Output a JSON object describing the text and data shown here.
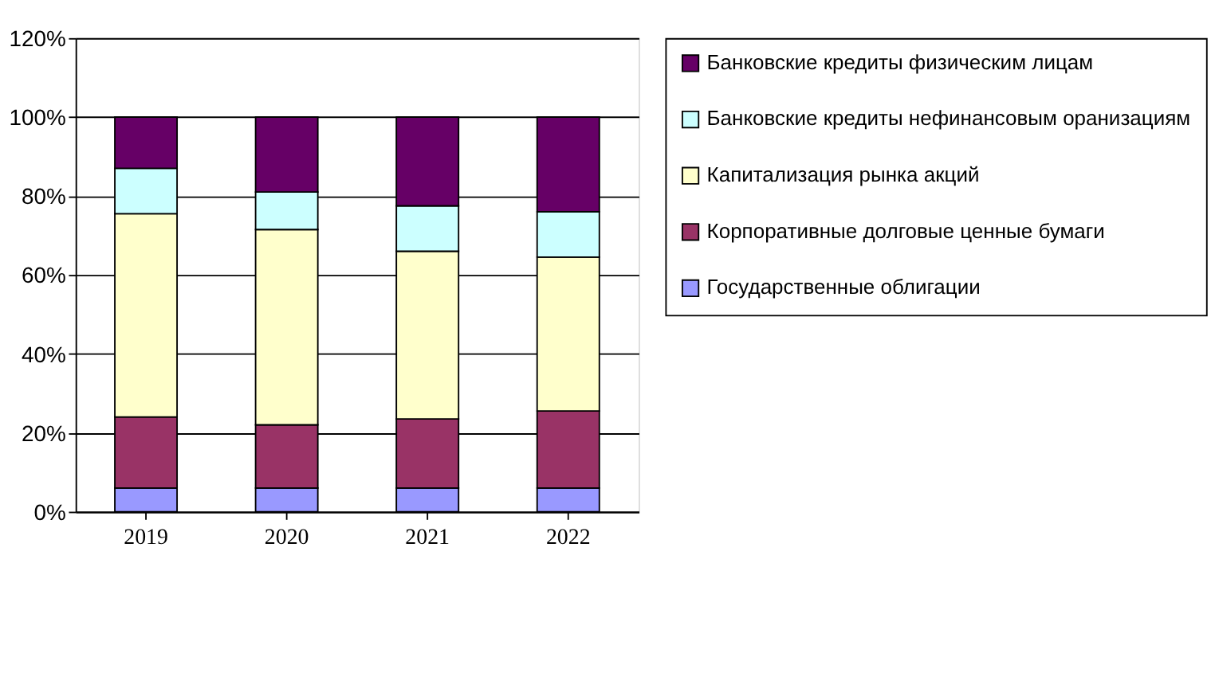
{
  "chart_data": {
    "type": "bar",
    "stacked": true,
    "categories": [
      "2019",
      "2020",
      "2021",
      "2022"
    ],
    "series": [
      {
        "name": "Государственные облигации",
        "color": "#9999ff",
        "values": [
          6,
          6,
          6,
          6
        ]
      },
      {
        "name": "Корпоративные долговые ценные бумаги",
        "color": "#993366",
        "values": [
          18,
          16,
          17.5,
          19.5
        ]
      },
      {
        "name": "Капитализация рынка акций",
        "color": "#ffffcc",
        "values": [
          51.5,
          49.5,
          42.5,
          39
        ]
      },
      {
        "name": "Банковские кредиты нефинансовым оранизациям",
        "color": "#ccffff",
        "values": [
          11.5,
          9.5,
          11.5,
          11.5
        ]
      },
      {
        "name": "Банковские кредиты физическим лицам",
        "color": "#660066",
        "values": [
          13,
          19,
          22.5,
          24
        ]
      }
    ],
    "ylim": [
      0,
      120
    ],
    "yticks": [
      {
        "value": 0,
        "label": "0%"
      },
      {
        "value": 20,
        "label": "20%"
      },
      {
        "value": 40,
        "label": "40%"
      },
      {
        "value": 60,
        "label": "60%"
      },
      {
        "value": 80,
        "label": "80%"
      },
      {
        "value": 100,
        "label": "100%"
      },
      {
        "value": 120,
        "label": "120%"
      }
    ],
    "grid": "y",
    "legend": "right"
  }
}
